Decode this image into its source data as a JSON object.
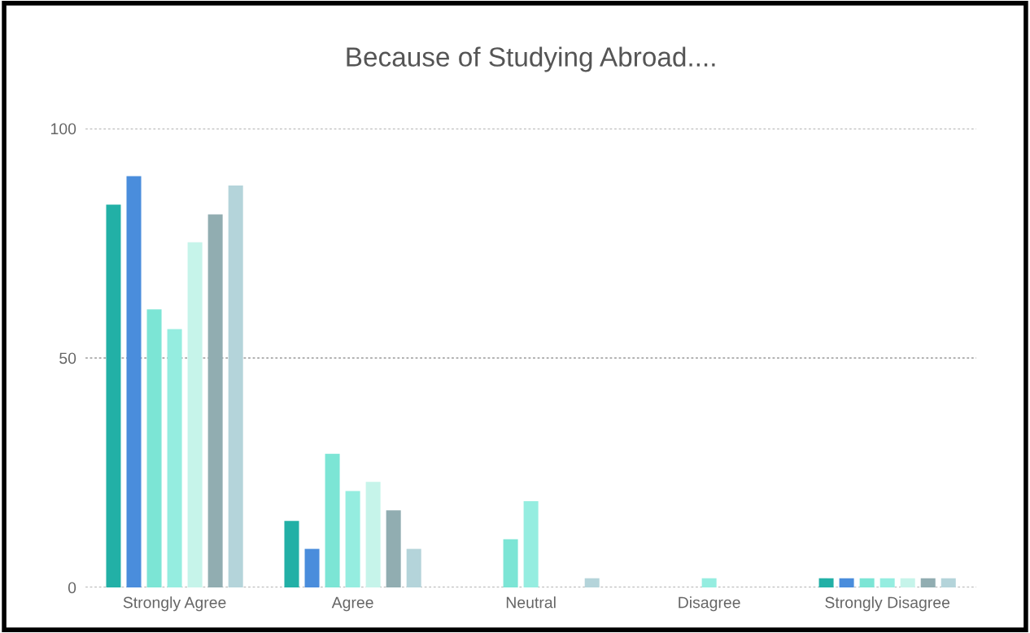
{
  "chart_data": {
    "type": "bar",
    "title": "Because of Studying Abroad....",
    "categories": [
      "Strongly Agree",
      "Agree",
      "Neutral",
      "Disagree",
      "Strongly Disagree"
    ],
    "series": [
      {
        "color": "#22b0a6",
        "values": [
          83.4,
          14.5,
          0,
          0,
          2
        ]
      },
      {
        "color": "#4a8ddc",
        "values": [
          89.6,
          8.4,
          0,
          0,
          2
        ]
      },
      {
        "color": "#7ce5d5",
        "values": [
          60.6,
          29.1,
          10.5,
          0,
          2
        ]
      },
      {
        "color": "#95ede0",
        "values": [
          56.3,
          21.0,
          18.8,
          2,
          2
        ]
      },
      {
        "color": "#c6f4ea",
        "values": [
          75.2,
          23.0,
          0,
          0,
          2
        ]
      },
      {
        "color": "#91adb1",
        "values": [
          81.3,
          16.8,
          0,
          0,
          2
        ]
      },
      {
        "color": "#b4d4da",
        "values": [
          87.6,
          8.4,
          2,
          0,
          2
        ]
      }
    ],
    "ylim": [
      0,
      100
    ],
    "yticks": [
      0,
      50,
      100
    ],
    "grid": "y",
    "legend": false
  }
}
